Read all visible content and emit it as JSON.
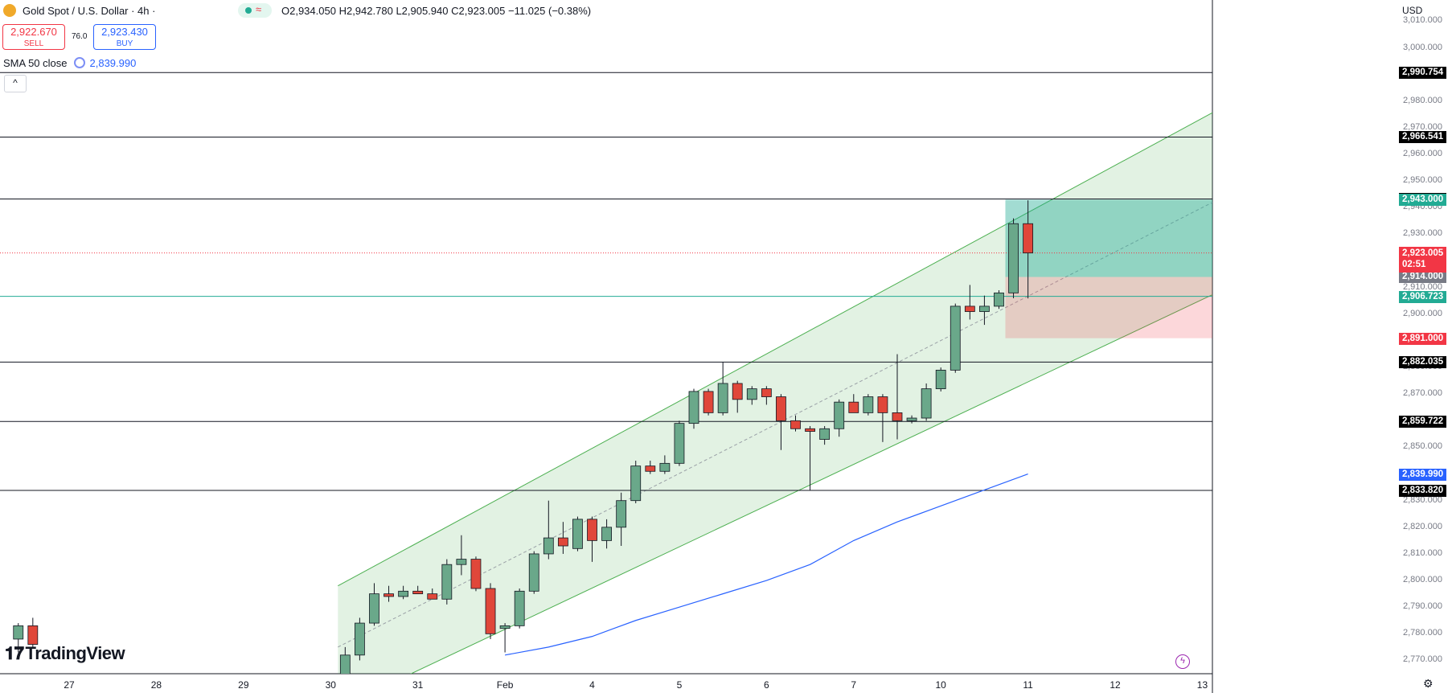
{
  "header": {
    "symbol": "Gold Spot / U.S. Dollar · 4h · ",
    "open": "O2,934.050",
    "high": "H2,942.780",
    "low": "L2,905.940",
    "close": "C2,923.005",
    "change": "−11.025 (−0.38%)",
    "sell_price": "2,922.670",
    "sell_label": "SELL",
    "buy_price": "2,923.430",
    "buy_label": "BUY",
    "spread": "76.0",
    "sma_label": "SMA 50 close",
    "sma_value": "2,839.990",
    "currency": "USD"
  },
  "colors": {
    "up": "#6aa88a",
    "down": "#e0473a",
    "channel": "#4caf50",
    "sma": "#2962ff",
    "profit": "#22ab94",
    "loss": "#f23645"
  },
  "chart_data": {
    "type": "candlestick",
    "symbol": "Gold Spot / U.S. Dollar",
    "interval": "4h",
    "ylim": [
      2765,
      3018
    ],
    "y_ticks": [
      2770,
      2780,
      2790,
      2800,
      2810,
      2820,
      2830,
      2840,
      2850,
      2860,
      2870,
      2880,
      2890,
      2900,
      2910,
      2920,
      2930,
      2940,
      2950,
      2960,
      2970,
      2980,
      2990,
      3000,
      3010
    ],
    "x_labels": [
      {
        "label": "27",
        "t": 0
      },
      {
        "label": "28",
        "t": 6
      },
      {
        "label": "29",
        "t": 12
      },
      {
        "label": "30",
        "t": 18
      },
      {
        "label": "31",
        "t": 24
      },
      {
        "label": "Feb",
        "t": 30
      },
      {
        "label": "4",
        "t": 36
      },
      {
        "label": "5",
        "t": 42
      },
      {
        "label": "6",
        "t": 48
      },
      {
        "label": "7",
        "t": 54
      },
      {
        "label": "10",
        "t": 60
      },
      {
        "label": "11",
        "t": 66
      },
      {
        "label": "12",
        "t": 72
      },
      {
        "label": "13",
        "t": 78
      }
    ],
    "candles": [
      {
        "t": -3.5,
        "o": 2778,
        "h": 2784,
        "l": 2773,
        "c": 2783
      },
      {
        "t": -2.5,
        "o": 2783,
        "h": 2786,
        "l": 2775,
        "c": 2776
      },
      {
        "t": 19,
        "o": 2762,
        "h": 2775,
        "l": 2758,
        "c": 2772
      },
      {
        "t": 20,
        "o": 2772,
        "h": 2786,
        "l": 2770,
        "c": 2784
      },
      {
        "t": 21,
        "o": 2784,
        "h": 2799,
        "l": 2783,
        "c": 2795
      },
      {
        "t": 22,
        "o": 2795,
        "h": 2798,
        "l": 2792,
        "c": 2794
      },
      {
        "t": 23,
        "o": 2794,
        "h": 2798,
        "l": 2793,
        "c": 2796
      },
      {
        "t": 24,
        "o": 2796,
        "h": 2798,
        "l": 2795,
        "c": 2795
      },
      {
        "t": 25,
        "o": 2795,
        "h": 2797,
        "l": 2793,
        "c": 2793
      },
      {
        "t": 26,
        "o": 2793,
        "h": 2808,
        "l": 2791,
        "c": 2806
      },
      {
        "t": 27,
        "o": 2806,
        "h": 2817,
        "l": 2802,
        "c": 2808
      },
      {
        "t": 28,
        "o": 2808,
        "h": 2809,
        "l": 2796,
        "c": 2797
      },
      {
        "t": 29,
        "o": 2797,
        "h": 2799,
        "l": 2778,
        "c": 2780
      },
      {
        "t": 30,
        "o": 2782,
        "h": 2784,
        "l": 2773,
        "c": 2783
      },
      {
        "t": 31,
        "o": 2783,
        "h": 2797,
        "l": 2782,
        "c": 2796
      },
      {
        "t": 32,
        "o": 2796,
        "h": 2811,
        "l": 2795,
        "c": 2810
      },
      {
        "t": 33,
        "o": 2810,
        "h": 2830,
        "l": 2808,
        "c": 2816
      },
      {
        "t": 34,
        "o": 2816,
        "h": 2822,
        "l": 2810,
        "c": 2813
      },
      {
        "t": 35,
        "o": 2812,
        "h": 2824,
        "l": 2811,
        "c": 2823
      },
      {
        "t": 36,
        "o": 2823,
        "h": 2824,
        "l": 2807,
        "c": 2815
      },
      {
        "t": 37,
        "o": 2815,
        "h": 2823,
        "l": 2812,
        "c": 2820
      },
      {
        "t": 38,
        "o": 2820,
        "h": 2833,
        "l": 2813,
        "c": 2830
      },
      {
        "t": 39,
        "o": 2830,
        "h": 2845,
        "l": 2829,
        "c": 2843
      },
      {
        "t": 40,
        "o": 2843,
        "h": 2845,
        "l": 2840,
        "c": 2841
      },
      {
        "t": 41,
        "o": 2841,
        "h": 2847,
        "l": 2840,
        "c": 2844
      },
      {
        "t": 42,
        "o": 2844,
        "h": 2860,
        "l": 2843,
        "c": 2859
      },
      {
        "t": 43,
        "o": 2859,
        "h": 2872,
        "l": 2857,
        "c": 2871
      },
      {
        "t": 44,
        "o": 2871,
        "h": 2872,
        "l": 2862,
        "c": 2863
      },
      {
        "t": 45,
        "o": 2863,
        "h": 2882,
        "l": 2862,
        "c": 2874
      },
      {
        "t": 46,
        "o": 2874,
        "h": 2875,
        "l": 2863,
        "c": 2868
      },
      {
        "t": 47,
        "o": 2868,
        "h": 2873,
        "l": 2866,
        "c": 2872
      },
      {
        "t": 48,
        "o": 2872,
        "h": 2873,
        "l": 2866,
        "c": 2869
      },
      {
        "t": 49,
        "o": 2869,
        "h": 2870,
        "l": 2849,
        "c": 2860
      },
      {
        "t": 50,
        "o": 2860,
        "h": 2862,
        "l": 2856,
        "c": 2857
      },
      {
        "t": 51,
        "o": 2857,
        "h": 2858,
        "l": 2834,
        "c": 2856
      },
      {
        "t": 52,
        "o": 2853,
        "h": 2858,
        "l": 2851,
        "c": 2857
      },
      {
        "t": 53,
        "o": 2857,
        "h": 2868,
        "l": 2854,
        "c": 2867
      },
      {
        "t": 54,
        "o": 2867,
        "h": 2870,
        "l": 2863,
        "c": 2863
      },
      {
        "t": 55,
        "o": 2863,
        "h": 2870,
        "l": 2862,
        "c": 2869
      },
      {
        "t": 56,
        "o": 2869,
        "h": 2870,
        "l": 2852,
        "c": 2863
      },
      {
        "t": 57,
        "o": 2863,
        "h": 2885,
        "l": 2853,
        "c": 2860
      },
      {
        "t": 58,
        "o": 2860,
        "h": 2862,
        "l": 2859,
        "c": 2861
      },
      {
        "t": 59,
        "o": 2861,
        "h": 2874,
        "l": 2860,
        "c": 2872
      },
      {
        "t": 60,
        "o": 2872,
        "h": 2880,
        "l": 2871,
        "c": 2879
      },
      {
        "t": 61,
        "o": 2879,
        "h": 2904,
        "l": 2878,
        "c": 2903
      },
      {
        "t": 62,
        "o": 2903,
        "h": 2911,
        "l": 2898,
        "c": 2901
      },
      {
        "t": 63,
        "o": 2901,
        "h": 2907,
        "l": 2896,
        "c": 2903
      },
      {
        "t": 64,
        "o": 2903,
        "h": 2909,
        "l": 2902,
        "c": 2908
      },
      {
        "t": 65,
        "o": 2908,
        "h": 2936,
        "l": 2906,
        "c": 2934
      },
      {
        "t": 66,
        "o": 2934,
        "h": 2942.78,
        "l": 2905.94,
        "c": 2923.005
      }
    ],
    "sma50": {
      "name": "SMA 50 close",
      "points": [
        [
          30,
          2772
        ],
        [
          33,
          2775
        ],
        [
          36,
          2779
        ],
        [
          39,
          2785
        ],
        [
          42,
          2790
        ],
        [
          45,
          2795
        ],
        [
          48,
          2800
        ],
        [
          51,
          2806
        ],
        [
          54,
          2815
        ],
        [
          57,
          2822
        ],
        [
          60,
          2828
        ],
        [
          63,
          2834
        ],
        [
          66,
          2840
        ]
      ]
    },
    "channel": {
      "upper": [
        [
          18.5,
          2798
        ],
        [
          80.5,
          2981
        ]
      ],
      "lower": [
        [
          18.5,
          2752
        ],
        [
          80.5,
          2912
        ]
      ],
      "mid": [
        [
          18.5,
          2775
        ],
        [
          80.5,
          2947
        ]
      ]
    },
    "horizontal_levels": [
      {
        "value": 2990.754,
        "label": "2,990.754"
      },
      {
        "value": 2966.541,
        "label": "2,966.541"
      },
      {
        "value": 2943.278,
        "label": "2,943.278"
      },
      {
        "value": 2882.035,
        "label": "2,882.035"
      },
      {
        "value": 2859.722,
        "label": "2,859.722"
      },
      {
        "value": 2833.82,
        "label": "2,833.820"
      }
    ],
    "entry_level": {
      "value": 2906.723,
      "label": "2,906.723"
    },
    "position": {
      "t_start": 64,
      "t_end": 80.5,
      "entry": 2914.0,
      "target": 2943.0,
      "stop": 2891.0,
      "entry_label": "2,914.000",
      "target_label": "2,943.000",
      "stop_label": "2,891.000"
    },
    "current_price": {
      "value": 2923.005,
      "label": "2,923.005",
      "countdown": "02:51"
    },
    "sma_label_price": {
      "value": 2839.99,
      "label": "2,839.990"
    }
  }
}
